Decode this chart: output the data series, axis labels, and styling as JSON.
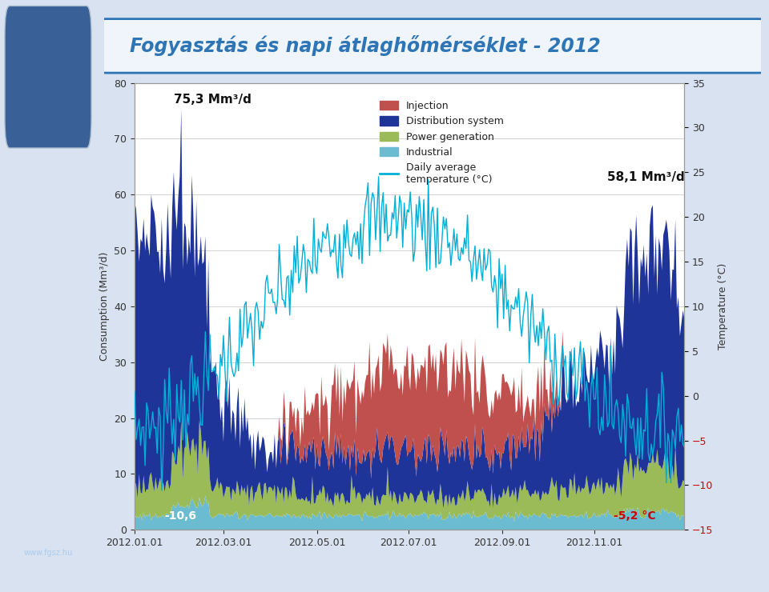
{
  "title": "Fogyasztás és napi átlaghőmérséklet - 2012",
  "title_color": "#2E75B6",
  "ylabel_left": "Consumption (Mm³/d)",
  "ylabel_right": "Temperature (°C)",
  "ylim_left": [
    0,
    80
  ],
  "ylim_right": [
    -15,
    35
  ],
  "yticks_left": [
    0,
    10,
    20,
    30,
    40,
    50,
    60,
    70,
    80
  ],
  "yticks_right": [
    -15,
    -10,
    -5,
    0,
    5,
    10,
    15,
    20,
    25,
    30,
    35
  ],
  "annotation_max": "75,3 Mm³/d",
  "annotation_dec": "58,1 Mm³/d",
  "annotation_min_temp": "-10,6",
  "annotation_dec_temp": "-5,2 °C",
  "colors": {
    "injection": "#C0504D",
    "distribution": "#1F3499",
    "power_gen": "#9BBB59",
    "industrial": "#6BBCD0",
    "temperature": "#00B0D8",
    "background": "#FFFFFF",
    "grid": "#CCCCCC",
    "sidebar": "#2E5496",
    "fig_bg": "#D9E2F0"
  },
  "legend": {
    "injection": "Injection",
    "distribution": "Distribution system",
    "power_gen": "Power generation",
    "industrial": "Industrial",
    "temperature": "Daily average\ntemperature (°C)"
  },
  "xticklabels": [
    "2012.01.01",
    "2012.03.01",
    "2012.05.01",
    "2012.07.01",
    "2012.09.01",
    "2012.11.01"
  ],
  "xtick_days": [
    0,
    59,
    121,
    182,
    244,
    305
  ]
}
